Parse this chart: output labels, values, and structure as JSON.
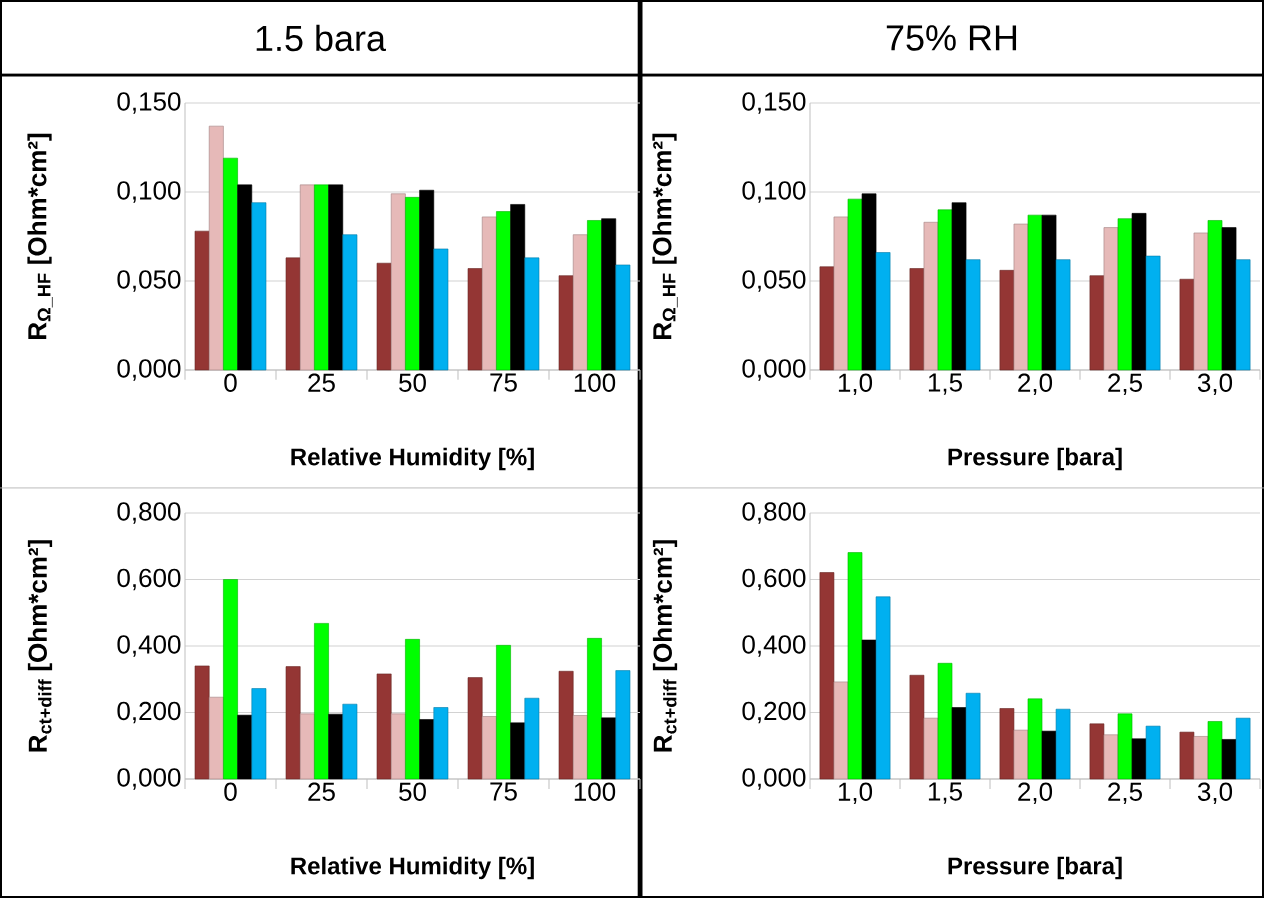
{
  "chart_data": [
    {
      "type": "bar",
      "title": "1.5 bara",
      "xlabel": "Relative Humidity [%]",
      "ylabel": "R$_{Ω_HF}$ [Ohm*cm²]",
      "categories": [
        "0",
        "25",
        "50",
        "75",
        "100"
      ],
      "ylim": [
        0,
        0.15
      ],
      "yticks": [
        {
          "value": 0,
          "label": "0,000"
        },
        {
          "value": 0.05,
          "label": "0,050"
        },
        {
          "value": 0.1,
          "label": "0,100"
        },
        {
          "value": 0.15,
          "label": "0,150"
        }
      ],
      "grid": "y",
      "series": [
        {
          "color": "#943634",
          "values": [
            0.078,
            0.063,
            0.06,
            0.057,
            0.053
          ]
        },
        {
          "color": "#e6b9b8",
          "values": [
            0.137,
            0.104,
            0.099,
            0.086,
            0.076
          ]
        },
        {
          "color": "#00ff00",
          "values": [
            0.119,
            0.104,
            0.097,
            0.089,
            0.084
          ]
        },
        {
          "color": "#000000",
          "values": [
            0.104,
            0.104,
            0.101,
            0.093,
            0.085
          ]
        },
        {
          "color": "#00b0f0",
          "values": [
            0.094,
            0.076,
            0.068,
            0.063,
            0.059
          ]
        }
      ]
    },
    {
      "type": "bar",
      "title": "75% RH",
      "xlabel": "Pressure [bara]",
      "ylabel": "R$_{Ω_HF}$ [Ohm*cm²]",
      "categories": [
        "1,0",
        "1,5",
        "2,0",
        "2,5",
        "3,0"
      ],
      "ylim": [
        0,
        0.15
      ],
      "yticks": [
        {
          "value": 0,
          "label": "0,000"
        },
        {
          "value": 0.05,
          "label": "0,050"
        },
        {
          "value": 0.1,
          "label": "0,100"
        },
        {
          "value": 0.15,
          "label": "0,150"
        }
      ],
      "grid": "y",
      "series": [
        {
          "color": "#943634",
          "values": [
            0.058,
            0.057,
            0.056,
            0.053,
            0.051
          ]
        },
        {
          "color": "#e6b9b8",
          "values": [
            0.086,
            0.083,
            0.082,
            0.08,
            0.077
          ]
        },
        {
          "color": "#00ff00",
          "values": [
            0.096,
            0.09,
            0.087,
            0.085,
            0.084
          ]
        },
        {
          "color": "#000000",
          "values": [
            0.099,
            0.094,
            0.087,
            0.088,
            0.08
          ]
        },
        {
          "color": "#00b0f0",
          "values": [
            0.066,
            0.062,
            0.062,
            0.064,
            0.062
          ]
        }
      ]
    },
    {
      "type": "bar",
      "xlabel": "Relative Humidity [%]",
      "ylabel": "R$_{ct+diff}$ [Ohm*cm²]",
      "categories": [
        "0",
        "25",
        "50",
        "75",
        "100"
      ],
      "ylim": [
        0,
        0.8
      ],
      "yticks": [
        {
          "value": 0,
          "label": "0,000"
        },
        {
          "value": 0.2,
          "label": "0,200"
        },
        {
          "value": 0.4,
          "label": "0,400"
        },
        {
          "value": 0.6,
          "label": "0,600"
        },
        {
          "value": 0.8,
          "label": "0,800"
        }
      ],
      "grid": "y",
      "series": [
        {
          "color": "#943634",
          "values": [
            0.34,
            0.338,
            0.316,
            0.305,
            0.324
          ]
        },
        {
          "color": "#e6b9b8",
          "values": [
            0.246,
            0.196,
            0.196,
            0.188,
            0.191
          ]
        },
        {
          "color": "#00ff00",
          "values": [
            0.6,
            0.468,
            0.42,
            0.402,
            0.423
          ]
        },
        {
          "color": "#000000",
          "values": [
            0.192,
            0.195,
            0.179,
            0.169,
            0.184
          ]
        },
        {
          "color": "#00b0f0",
          "values": [
            0.272,
            0.225,
            0.215,
            0.243,
            0.326
          ]
        }
      ]
    },
    {
      "type": "bar",
      "xlabel": "Pressure [bara]",
      "ylabel": "R$_{ct+diff}$ [Ohm*cm²]",
      "categories": [
        "1,0",
        "1,5",
        "2,0",
        "2,5",
        "3,0"
      ],
      "ylim": [
        0,
        0.8
      ],
      "yticks": [
        {
          "value": 0,
          "label": "0,000"
        },
        {
          "value": 0.2,
          "label": "0,200"
        },
        {
          "value": 0.4,
          "label": "0,400"
        },
        {
          "value": 0.6,
          "label": "0,600"
        },
        {
          "value": 0.8,
          "label": "0,800"
        }
      ],
      "grid": "y",
      "series": [
        {
          "color": "#943634",
          "values": [
            0.621,
            0.312,
            0.212,
            0.166,
            0.141
          ]
        },
        {
          "color": "#e6b9b8",
          "values": [
            0.292,
            0.183,
            0.147,
            0.133,
            0.128
          ]
        },
        {
          "color": "#00ff00",
          "values": [
            0.681,
            0.348,
            0.241,
            0.196,
            0.173
          ]
        },
        {
          "color": "#000000",
          "values": [
            0.418,
            0.215,
            0.144,
            0.121,
            0.119
          ]
        },
        {
          "color": "#00b0f0",
          "values": [
            0.548,
            0.258,
            0.21,
            0.159,
            0.183
          ]
        }
      ]
    }
  ]
}
